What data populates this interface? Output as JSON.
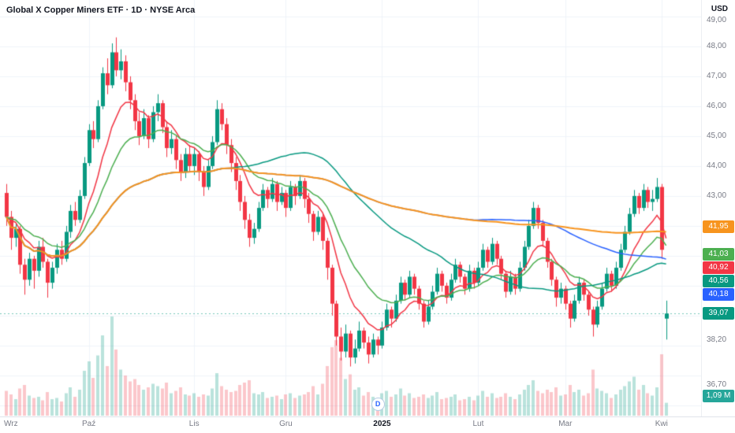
{
  "header": {
    "title": "Global X Copper Miners ETF · 1D · NYSE Arca"
  },
  "price_axis": {
    "currency": "USD",
    "badges": [
      {
        "name": "ma-orange-badge",
        "label": "41,95",
        "price": 41.95,
        "color": "#f7941e"
      },
      {
        "name": "ma-green-badge",
        "label": "41,03",
        "price": 41.03,
        "color": "#4caf50"
      },
      {
        "name": "ma-red-badge",
        "label": "40,92",
        "price": 40.92,
        "color": "#f23645"
      },
      {
        "name": "ma-teal-badge",
        "label": "40,56",
        "price": 40.56,
        "color": "#089981"
      },
      {
        "name": "ma-blue-badge",
        "label": "40,18",
        "price": 40.18,
        "color": "#2962ff"
      },
      {
        "name": "last-price-badge",
        "label": "39,07",
        "price": 39.07,
        "color": "#089981"
      }
    ],
    "volume_badge": {
      "label": "1,09 M",
      "color": "#26a69a"
    }
  },
  "colors": {
    "background": "#ffffff",
    "grid": "#f0f3fa",
    "axis_text": "#787b86",
    "up": "#089981",
    "down": "#f23645",
    "volume_up": "rgba(8,153,129,0.28)",
    "volume_down": "rgba(242,54,69,0.28)",
    "last_price_line": "rgba(8,153,129,0.55)"
  },
  "chart_data": {
    "type": "candlestick",
    "title": "Global X Copper Miners ETF",
    "interval": "1D",
    "exchange": "NYSE Arca",
    "currency": "USD",
    "last_price": 39.07,
    "last_volume_label": "1,09 M",
    "volume_unit": "millions of shares",
    "y_axis": {
      "range_approx": [
        35.6,
        49.55
      ],
      "ticks": [
        {
          "label": "49,00",
          "price": 49.0
        },
        {
          "label": "48,00",
          "price": 48.0
        },
        {
          "label": "47,00",
          "price": 47.0
        },
        {
          "label": "46,00",
          "price": 46.0
        },
        {
          "label": "45,00",
          "price": 45.0
        },
        {
          "label": "44,00",
          "price": 44.0
        },
        {
          "label": "43,00",
          "price": 43.0
        },
        {
          "label": "38,20",
          "price": 38.2
        },
        {
          "label": "36,70",
          "price": 36.7
        }
      ]
    },
    "x_axis": {
      "labels": [
        {
          "label": "Wrz",
          "day": 1,
          "em": false
        },
        {
          "label": "Paź",
          "day": 18,
          "em": false
        },
        {
          "label": "Lis",
          "day": 41,
          "em": false
        },
        {
          "label": "Gru",
          "day": 61,
          "em": false
        },
        {
          "label": "2025",
          "day": 82,
          "em": true
        },
        {
          "label": "Lut",
          "day": 103,
          "em": false
        },
        {
          "label": "Mar",
          "day": 122,
          "em": false
        },
        {
          "label": "Kwi",
          "day": 143,
          "em": false
        }
      ]
    },
    "moving_averages": [
      {
        "name": "ma-red",
        "type": "EMA",
        "period": 10,
        "color": "#f23645",
        "last_value": 40.92
      },
      {
        "name": "ma-green",
        "type": "EMA",
        "period": 20,
        "color": "#4caf50",
        "last_value": 41.03
      },
      {
        "name": "ma-teal",
        "type": "SMA",
        "period": 50,
        "color": "#089981",
        "last_value": 40.56
      },
      {
        "name": "ma-blue",
        "type": "SMA",
        "period": 100,
        "color": "#2962ff",
        "last_value": 40.18
      },
      {
        "name": "ma-orange",
        "type": "SMA",
        "period": 200,
        "color": "#f7941e",
        "last_value": 41.95
      }
    ],
    "events": [
      {
        "type": "dividend",
        "label": "D",
        "day": 81
      }
    ],
    "candles": [
      [
        43.1,
        43.4,
        42.0,
        42.3,
        2.1
      ],
      [
        42.3,
        42.5,
        41.2,
        41.6,
        1.8
      ],
      [
        41.6,
        42.1,
        41.3,
        41.9,
        1.4
      ],
      [
        41.9,
        42.0,
        40.4,
        40.7,
        2.3
      ],
      [
        40.7,
        40.9,
        39.7,
        40.2,
        2.6
      ],
      [
        40.2,
        41.1,
        40.0,
        40.9,
        1.7
      ],
      [
        40.9,
        41.0,
        39.9,
        40.5,
        1.5
      ],
      [
        40.5,
        41.5,
        40.3,
        41.3,
        1.6
      ],
      [
        41.3,
        41.6,
        40.6,
        40.8,
        1.3
      ],
      [
        40.8,
        40.9,
        39.6,
        40.1,
        2.0
      ],
      [
        40.1,
        40.8,
        39.9,
        40.6,
        1.4
      ],
      [
        40.6,
        41.4,
        40.4,
        41.2,
        1.5
      ],
      [
        41.2,
        41.5,
        40.7,
        40.9,
        1.2
      ],
      [
        40.9,
        42.0,
        40.8,
        41.8,
        1.9
      ],
      [
        41.8,
        42.7,
        41.6,
        42.5,
        2.4
      ],
      [
        42.5,
        42.8,
        42.0,
        42.2,
        1.6
      ],
      [
        42.2,
        43.2,
        42.1,
        43.0,
        2.2
      ],
      [
        43.0,
        44.3,
        42.9,
        44.1,
        3.8
      ],
      [
        44.1,
        45.4,
        44.0,
        45.2,
        4.6
      ],
      [
        45.2,
        45.5,
        44.6,
        44.9,
        3.2
      ],
      [
        44.9,
        46.2,
        44.8,
        46.0,
        5.1
      ],
      [
        46.0,
        47.3,
        45.9,
        47.1,
        6.8
      ],
      [
        47.1,
        47.6,
        46.4,
        46.7,
        4.2
      ],
      [
        46.7,
        48.1,
        46.6,
        47.8,
        8.4
      ],
      [
        47.8,
        48.3,
        47.0,
        47.2,
        5.6
      ],
      [
        47.2,
        47.9,
        46.9,
        47.5,
        3.9
      ],
      [
        47.5,
        47.7,
        46.5,
        46.8,
        3.4
      ],
      [
        46.8,
        47.0,
        45.9,
        46.2,
        2.9
      ],
      [
        46.2,
        46.4,
        45.2,
        45.5,
        3.1
      ],
      [
        45.5,
        45.8,
        44.7,
        45.0,
        2.6
      ],
      [
        45.0,
        45.9,
        44.9,
        45.6,
        2.2
      ],
      [
        45.6,
        45.7,
        44.6,
        44.9,
        2.4
      ],
      [
        44.9,
        46.0,
        44.8,
        45.8,
        2.7
      ],
      [
        45.8,
        46.4,
        45.5,
        46.1,
        2.5
      ],
      [
        46.1,
        46.2,
        45.1,
        45.3,
        2.3
      ],
      [
        45.3,
        45.5,
        44.3,
        44.6,
        2.8
      ],
      [
        44.6,
        45.2,
        44.4,
        44.9,
        1.9
      ],
      [
        44.9,
        45.0,
        43.9,
        44.2,
        2.1
      ],
      [
        44.2,
        44.4,
        43.5,
        43.8,
        2.4
      ],
      [
        43.8,
        44.6,
        43.6,
        44.4,
        1.8
      ],
      [
        44.4,
        44.7,
        43.8,
        44.0,
        1.7
      ],
      [
        44.0,
        44.6,
        43.7,
        44.4,
        1.9
      ],
      [
        44.4,
        44.5,
        43.5,
        43.8,
        1.6
      ],
      [
        43.8,
        44.0,
        43.0,
        43.3,
        1.8
      ],
      [
        43.3,
        44.2,
        43.2,
        44.0,
        1.7
      ],
      [
        44.0,
        45.0,
        43.9,
        44.8,
        2.3
      ],
      [
        44.8,
        46.2,
        44.7,
        45.9,
        3.6
      ],
      [
        45.9,
        46.1,
        45.2,
        45.4,
        2.5
      ],
      [
        45.4,
        45.6,
        44.4,
        44.7,
        2.2
      ],
      [
        44.7,
        44.9,
        43.8,
        44.1,
        2.0
      ],
      [
        44.1,
        44.3,
        43.2,
        43.5,
        2.1
      ],
      [
        43.5,
        43.7,
        42.5,
        42.8,
        2.6
      ],
      [
        42.8,
        43.0,
        41.9,
        42.2,
        2.8
      ],
      [
        42.2,
        42.4,
        41.3,
        41.6,
        3.0
      ],
      [
        41.6,
        42.1,
        41.4,
        41.9,
        1.9
      ],
      [
        41.9,
        42.8,
        41.8,
        42.6,
        1.8
      ],
      [
        42.6,
        43.4,
        42.5,
        43.2,
        2.0
      ],
      [
        43.2,
        43.3,
        42.6,
        42.9,
        1.5
      ],
      [
        42.9,
        43.6,
        42.8,
        43.4,
        1.6
      ],
      [
        43.4,
        43.5,
        42.5,
        42.8,
        1.7
      ],
      [
        42.8,
        43.3,
        42.7,
        43.1,
        1.4
      ],
      [
        43.1,
        43.2,
        42.3,
        42.6,
        1.8
      ],
      [
        42.6,
        43.5,
        42.5,
        43.3,
        1.9
      ],
      [
        43.3,
        43.4,
        42.7,
        43.0,
        1.5
      ],
      [
        43.0,
        43.7,
        42.9,
        43.5,
        1.7
      ],
      [
        43.5,
        43.6,
        42.6,
        42.9,
        1.8
      ],
      [
        42.9,
        43.1,
        42.1,
        42.4,
        2.0
      ],
      [
        42.4,
        42.5,
        41.5,
        41.8,
        2.5
      ],
      [
        41.8,
        42.5,
        41.7,
        42.3,
        1.8
      ],
      [
        42.3,
        42.4,
        41.2,
        41.5,
        2.7
      ],
      [
        41.5,
        41.6,
        40.2,
        40.6,
        4.2
      ],
      [
        40.6,
        40.7,
        39.0,
        39.4,
        5.8
      ],
      [
        39.4,
        39.5,
        38.0,
        38.3,
        6.4
      ],
      [
        38.3,
        38.6,
        37.5,
        37.8,
        4.9
      ],
      [
        37.8,
        38.7,
        37.6,
        38.4,
        3.1
      ],
      [
        38.4,
        38.5,
        37.3,
        37.6,
        3.5
      ],
      [
        37.6,
        38.2,
        37.4,
        37.9,
        2.2
      ],
      [
        37.9,
        38.8,
        37.8,
        38.5,
        2.4
      ],
      [
        38.5,
        38.6,
        37.9,
        38.1,
        1.7
      ],
      [
        38.1,
        38.3,
        37.4,
        37.7,
        2.0
      ],
      [
        37.7,
        38.4,
        37.6,
        38.2,
        1.6
      ],
      [
        38.2,
        38.3,
        37.7,
        38.0,
        1.3
      ],
      [
        38.0,
        38.8,
        37.9,
        38.6,
        1.9
      ],
      [
        38.6,
        39.4,
        38.5,
        39.2,
        2.1
      ],
      [
        39.2,
        39.3,
        38.6,
        38.9,
        1.6
      ],
      [
        38.9,
        39.7,
        38.8,
        39.5,
        1.8
      ],
      [
        39.5,
        40.3,
        39.4,
        40.1,
        2.3
      ],
      [
        40.1,
        40.2,
        39.5,
        39.7,
        1.7
      ],
      [
        39.7,
        40.5,
        39.6,
        40.3,
        1.9
      ],
      [
        40.3,
        40.4,
        39.7,
        39.9,
        1.5
      ],
      [
        39.9,
        40.0,
        39.2,
        39.4,
        1.6
      ],
      [
        39.4,
        39.5,
        38.6,
        38.8,
        1.8
      ],
      [
        38.8,
        39.5,
        38.7,
        39.3,
        1.5
      ],
      [
        39.3,
        40.0,
        39.2,
        39.8,
        1.7
      ],
      [
        39.8,
        40.6,
        39.7,
        40.4,
        2.0
      ],
      [
        40.4,
        40.5,
        39.8,
        40.0,
        1.4
      ],
      [
        40.0,
        40.1,
        39.4,
        39.6,
        1.5
      ],
      [
        39.6,
        40.4,
        39.5,
        40.2,
        1.6
      ],
      [
        40.2,
        40.9,
        40.1,
        40.7,
        1.8
      ],
      [
        40.7,
        40.8,
        40.1,
        40.3,
        1.3
      ],
      [
        40.3,
        40.4,
        39.7,
        39.9,
        1.4
      ],
      [
        39.9,
        40.7,
        39.8,
        40.5,
        1.6
      ],
      [
        40.5,
        40.6,
        39.9,
        40.1,
        1.3
      ],
      [
        40.1,
        40.8,
        40.0,
        40.6,
        1.7
      ],
      [
        40.6,
        41.4,
        40.5,
        41.2,
        2.1
      ],
      [
        41.2,
        41.3,
        40.6,
        40.8,
        1.6
      ],
      [
        40.8,
        41.6,
        40.7,
        41.4,
        1.9
      ],
      [
        41.4,
        41.5,
        40.7,
        40.9,
        1.5
      ],
      [
        40.9,
        41.0,
        40.2,
        40.4,
        1.6
      ],
      [
        40.4,
        40.5,
        39.6,
        39.8,
        1.9
      ],
      [
        39.8,
        40.5,
        39.7,
        40.3,
        1.6
      ],
      [
        40.3,
        40.4,
        39.7,
        39.9,
        1.4
      ],
      [
        39.9,
        40.8,
        39.8,
        40.6,
        1.8
      ],
      [
        40.6,
        41.5,
        40.5,
        41.3,
        2.2
      ],
      [
        41.3,
        42.2,
        41.2,
        42.0,
        2.6
      ],
      [
        42.0,
        42.8,
        41.9,
        42.6,
        3.0
      ],
      [
        42.6,
        42.7,
        41.9,
        42.1,
        2.1
      ],
      [
        42.1,
        42.2,
        41.3,
        41.5,
        1.9
      ],
      [
        41.5,
        41.6,
        40.6,
        40.8,
        2.2
      ],
      [
        40.8,
        40.9,
        40.0,
        40.2,
        2.0
      ],
      [
        40.2,
        40.3,
        39.3,
        39.6,
        2.4
      ],
      [
        39.6,
        40.1,
        39.4,
        39.9,
        1.7
      ],
      [
        39.9,
        40.0,
        39.2,
        39.4,
        1.8
      ],
      [
        39.4,
        39.5,
        38.6,
        38.9,
        2.6
      ],
      [
        38.9,
        39.7,
        38.8,
        39.5,
        2.0
      ],
      [
        39.5,
        40.3,
        39.4,
        40.1,
        2.2
      ],
      [
        40.1,
        40.2,
        39.5,
        39.7,
        1.7
      ],
      [
        39.7,
        39.8,
        39.0,
        39.2,
        1.9
      ],
      [
        39.2,
        39.3,
        38.3,
        38.7,
        3.9
      ],
      [
        38.7,
        39.5,
        38.6,
        39.3,
        2.3
      ],
      [
        39.3,
        40.1,
        39.2,
        39.9,
        2.1
      ],
      [
        39.9,
        40.6,
        39.8,
        40.4,
        1.9
      ],
      [
        40.4,
        40.5,
        39.8,
        40.0,
        1.5
      ],
      [
        40.0,
        40.8,
        39.9,
        40.6,
        1.8
      ],
      [
        40.6,
        41.4,
        40.5,
        41.2,
        2.2
      ],
      [
        41.2,
        42.0,
        41.1,
        41.8,
        2.5
      ],
      [
        41.8,
        42.6,
        41.7,
        42.4,
        2.9
      ],
      [
        42.4,
        43.2,
        42.3,
        43.0,
        3.3
      ],
      [
        43.0,
        43.1,
        42.4,
        42.6,
        2.2
      ],
      [
        42.6,
        43.4,
        42.5,
        43.2,
        2.6
      ],
      [
        43.2,
        43.3,
        42.6,
        42.8,
        1.9
      ],
      [
        42.8,
        43.2,
        42.5,
        42.9,
        1.7
      ],
      [
        42.9,
        43.6,
        42.8,
        43.3,
        2.4
      ],
      [
        43.3,
        43.4,
        40.9,
        41.2,
        5.2
      ],
      [
        38.9,
        39.5,
        38.2,
        39.07,
        1.09
      ]
    ]
  }
}
